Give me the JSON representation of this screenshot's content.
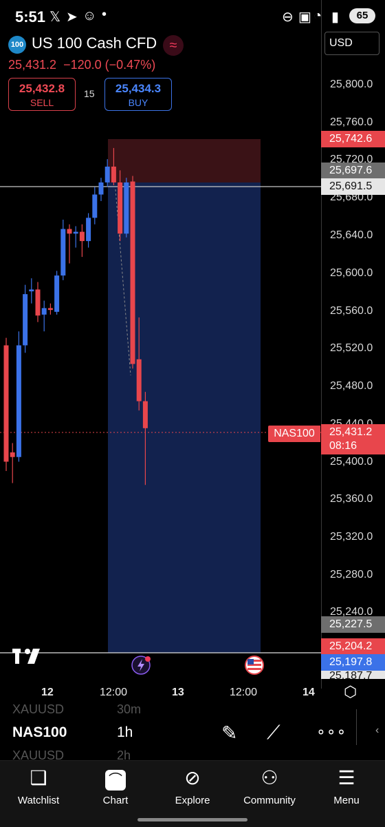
{
  "status_bar": {
    "time": "5:51",
    "battery": "65"
  },
  "header": {
    "symbol_badge": "100",
    "title": "US 100 Cash CFD",
    "pulse_icon": "≈",
    "last_price": "25,431.2",
    "change": "−120.0 (−0.47%)",
    "sell": {
      "price": "25,432.8",
      "label": "SELL"
    },
    "spread": "15",
    "buy": {
      "price": "25,434.3",
      "label": "BUY"
    },
    "currency": "USD"
  },
  "price_axis": {
    "ticks": [
      "25,800.0",
      "25,760.0",
      "25,720.0",
      "25,680.0",
      "25,640.0",
      "25,600.0",
      "25,560.0",
      "25,520.0",
      "25,480.0",
      "25,440.0",
      "25,400.0",
      "25,360.0",
      "25,320.0",
      "25,280.0",
      "25,240.0"
    ],
    "tags": {
      "stop": "25,742.6",
      "entry": "25,697.6",
      "crosshair": "25,691.5",
      "current": "25,431.2",
      "countdown": "08:16",
      "t1": "25,227.5",
      "t2": "25,204.2",
      "t3": "25,197.8",
      "t4": "25,187.7"
    },
    "symbol_tag": "NAS100"
  },
  "time_axis": {
    "labels": [
      "12",
      "12:00",
      "13",
      "12:00",
      "14"
    ]
  },
  "colors": {
    "bull": "#3b72e8",
    "bear": "#e8464c",
    "stop_zone": "#3a1216",
    "target_zone": "#12224e"
  },
  "chart_data": {
    "type": "candlestick",
    "symbol": "NAS100",
    "interval": "1h",
    "ylim": [
      25180,
      25840
    ],
    "candles": [
      {
        "o": 25520,
        "h": 25528,
        "l": 25385,
        "c": 25395
      },
      {
        "o": 25405,
        "h": 25415,
        "l": 25372,
        "c": 25400
      },
      {
        "o": 25400,
        "h": 25535,
        "l": 25395,
        "c": 25520
      },
      {
        "o": 25520,
        "h": 25585,
        "l": 25512,
        "c": 25575
      },
      {
        "o": 25578,
        "h": 25592,
        "l": 25565,
        "c": 25580
      },
      {
        "o": 25580,
        "h": 25588,
        "l": 25545,
        "c": 25552
      },
      {
        "o": 25553,
        "h": 25568,
        "l": 25535,
        "c": 25560
      },
      {
        "o": 25560,
        "h": 25565,
        "l": 25553,
        "c": 25558
      },
      {
        "o": 25556,
        "h": 25600,
        "l": 25553,
        "c": 25595
      },
      {
        "o": 25595,
        "h": 25655,
        "l": 25590,
        "c": 25645
      },
      {
        "o": 25645,
        "h": 25650,
        "l": 25608,
        "c": 25640
      },
      {
        "o": 25640,
        "h": 25648,
        "l": 25625,
        "c": 25642
      },
      {
        "o": 25642,
        "h": 25650,
        "l": 25615,
        "c": 25632
      },
      {
        "o": 25632,
        "h": 25662,
        "l": 25625,
        "c": 25657
      },
      {
        "o": 25657,
        "h": 25690,
        "l": 25650,
        "c": 25682
      },
      {
        "o": 25682,
        "h": 25700,
        "l": 25675,
        "c": 25695
      },
      {
        "o": 25695,
        "h": 25720,
        "l": 25690,
        "c": 25712
      },
      {
        "o": 25712,
        "h": 25732,
        "l": 25692,
        "c": 25695
      },
      {
        "o": 25695,
        "h": 25708,
        "l": 25632,
        "c": 25640
      },
      {
        "o": 25640,
        "h": 25700,
        "l": 25636,
        "c": 25695
      },
      {
        "o": 25696,
        "h": 25702,
        "l": 25495,
        "c": 25500
      },
      {
        "o": 25505,
        "h": 25550,
        "l": 25450,
        "c": 25460
      },
      {
        "o": 25460,
        "h": 25470,
        "l": 25370,
        "c": 25431
      }
    ],
    "position": {
      "side": "short",
      "entry": 25697.6,
      "stop": 25742.6,
      "target": 25204.2
    }
  },
  "toolbar": {
    "ghost_above_symbol": "XAUUSD",
    "ghost_above_interval": "30m",
    "symbol": "NAS100",
    "interval": "1h",
    "ghost_below_symbol": "XAUUSD",
    "ghost_below_interval": "2h"
  },
  "nav": [
    {
      "label": "Watchlist",
      "icon": "bookmark-icon"
    },
    {
      "label": "Chart",
      "icon": "chart-icon"
    },
    {
      "label": "Explore",
      "icon": "compass-icon"
    },
    {
      "label": "Community",
      "icon": "people-icon"
    },
    {
      "label": "Menu",
      "icon": "menu-icon"
    }
  ]
}
